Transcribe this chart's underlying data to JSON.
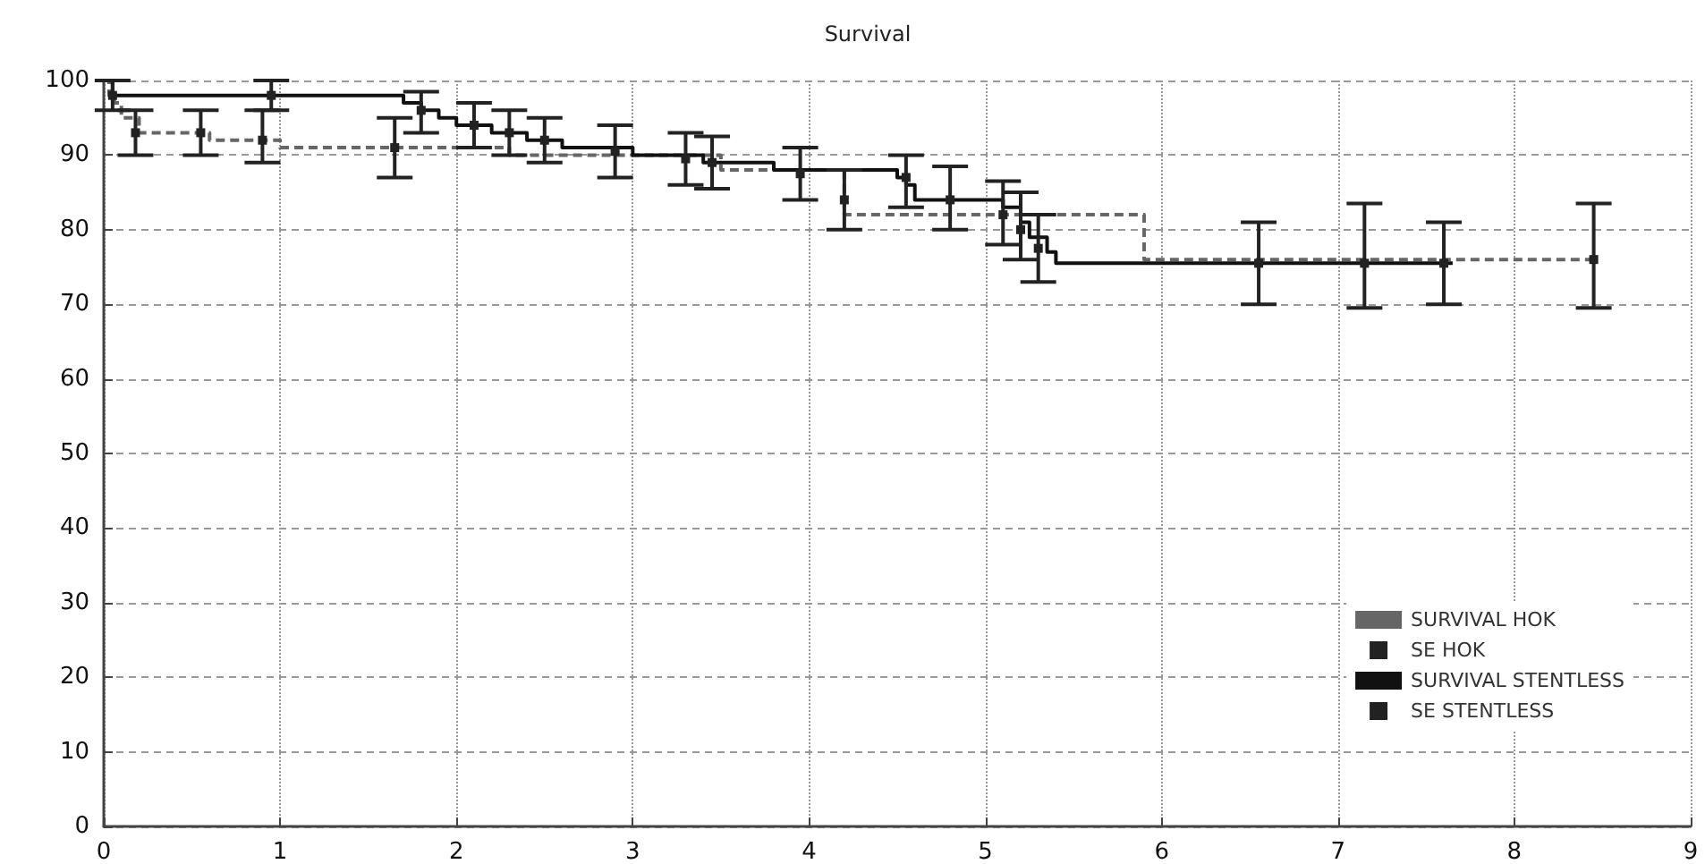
{
  "chart_data": {
    "type": "step",
    "title": "Survival",
    "xlim": [
      0,
      9
    ],
    "xticks": [
      0,
      1,
      2,
      3,
      4,
      5,
      6,
      7,
      8,
      9
    ],
    "ylim": [
      0,
      100
    ],
    "yticks": [
      0,
      10,
      20,
      30,
      40,
      50,
      60,
      70,
      80,
      90,
      100
    ],
    "grid": true,
    "legend": "bottom right",
    "series": [
      {
        "name": "SURVIVAL HOK",
        "marker": "none",
        "color": "#666666",
        "line_style": "dashed",
        "x": [
          0,
          0.03,
          0.06,
          0.1,
          0.2,
          0.6,
          1.0,
          2.3,
          3.5,
          4.2,
          5.9,
          8.45
        ],
        "values": [
          100,
          98,
          97,
          95,
          93,
          92,
          91,
          90,
          88,
          82,
          76,
          76
        ]
      },
      {
        "name": "SE HOK",
        "type": "scatter",
        "marker": "square",
        "color": "#222222",
        "x": [
          0.18,
          0.55,
          0.9,
          1.65,
          4.2,
          8.45
        ],
        "values": [
          93,
          93,
          92,
          91,
          84,
          76
        ],
        "errors": [
          [
            90,
            96
          ],
          [
            90,
            96
          ],
          [
            89,
            96
          ],
          [
            87,
            95
          ],
          [
            80,
            88
          ],
          [
            69.5,
            83.5
          ]
        ]
      },
      {
        "name": "SURVIVAL STENTLESS",
        "marker": "none",
        "color": "#111111",
        "line_style": "solid",
        "x": [
          0,
          0.05,
          1.7,
          1.8,
          1.9,
          2.0,
          2.2,
          2.4,
          2.6,
          3.0,
          3.4,
          3.8,
          4.5,
          4.55,
          4.6,
          5.1,
          5.2,
          5.25,
          5.35,
          5.4,
          7.65
        ],
        "values": [
          100,
          98,
          97,
          96,
          95,
          94,
          93,
          92,
          91,
          90,
          89,
          88,
          87,
          86,
          84,
          83,
          81,
          79,
          77,
          75.5,
          75.5
        ]
      },
      {
        "name": "SE STENTLESS",
        "type": "scatter",
        "marker": "square",
        "color": "#222222",
        "x": [
          0.05,
          0.95,
          1.8,
          2.1,
          2.3,
          2.5,
          2.9,
          3.3,
          3.45,
          3.95,
          4.55,
          4.8,
          5.1,
          5.2,
          5.3,
          6.55,
          7.15,
          7.6
        ],
        "values": [
          98,
          98,
          96,
          94,
          93,
          92,
          90.5,
          89.5,
          89,
          87.5,
          87,
          84,
          82,
          80,
          77.5,
          75.5,
          75.5,
          75.5
        ],
        "errors": [
          [
            96,
            100
          ],
          [
            96,
            100
          ],
          [
            93,
            98.5
          ],
          [
            91,
            97
          ],
          [
            90,
            96
          ],
          [
            89,
            95
          ],
          [
            87,
            94
          ],
          [
            86,
            93
          ],
          [
            85.5,
            92.5
          ],
          [
            84,
            91
          ],
          [
            83,
            90
          ],
          [
            80,
            88.5
          ],
          [
            78,
            86.5
          ],
          [
            76,
            85
          ],
          [
            73,
            82
          ],
          [
            70,
            81
          ],
          [
            69.5,
            83.5
          ],
          [
            70,
            81
          ]
        ]
      }
    ]
  }
}
